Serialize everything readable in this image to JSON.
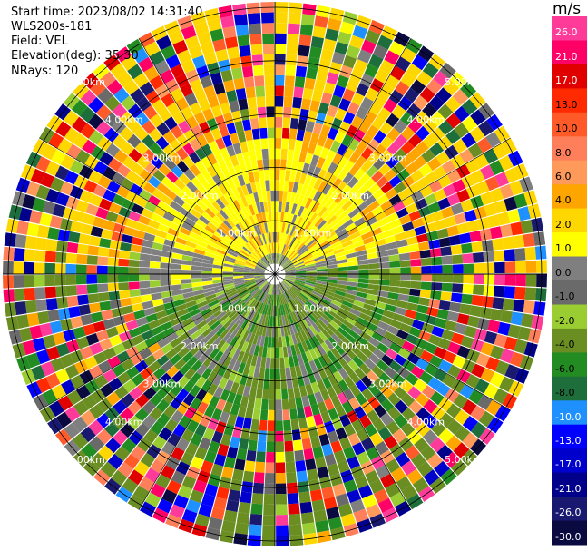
{
  "info": {
    "start_time": "Start time: 2023/08/02 14:31:40",
    "instrument": "WLS200s-181",
    "field": "Field: VEL",
    "elevation": "Elevation(deg): 35.30",
    "nrays": "NRays: 120"
  },
  "colorbar": {
    "unit": "m/s",
    "ticks": [
      "26.0",
      "21.0",
      "17.0",
      "13.0",
      "10.0",
      "8.0",
      "6.0",
      "4.0",
      "2.0",
      "1.0",
      "0.0",
      "-1.0",
      "-2.0",
      "-4.0",
      "-6.0",
      "-8.0",
      "-10.0",
      "-13.0",
      "-17.0",
      "-21.0",
      "-26.0",
      "-30.0"
    ],
    "colors": [
      "#ff3b9a",
      "#ff0066",
      "#e00000",
      "#ff2a00",
      "#ff5a28",
      "#ff7f5a",
      "#ff9a5a",
      "#ffa500",
      "#ffd700",
      "#ffff00",
      "#7f7f7f",
      "#6a6a6a",
      "#9acd32",
      "#6b8e23",
      "#228b22",
      "#1e6e3c",
      "#1e90ff",
      "#0000ff",
      "#0000cd",
      "#00008b",
      "#191970",
      "#0a0a40"
    ]
  },
  "chart_data": {
    "type": "heatmap",
    "projection": "polar plan-position indicator",
    "field": "VEL",
    "units": "m/s",
    "rays": 120,
    "range_rings": [
      "1.00km",
      "2.00km",
      "3.00km",
      "4.00km",
      "5.00km"
    ],
    "color_scale": {
      "boundaries": [
        26.0,
        21.0,
        17.0,
        13.0,
        10.0,
        8.0,
        6.0,
        4.0,
        2.0,
        1.0,
        0.0,
        -1.0,
        -2.0,
        -4.0,
        -6.0,
        -8.0,
        -10.0,
        -13.0,
        -17.0,
        -21.0,
        -26.0,
        -30.0
      ]
    },
    "pattern": {
      "near_range_north": "positive velocities 2-6 m/s (yellow/orange)",
      "near_range_south": "negative velocities -2 to -6 m/s (green)",
      "far_range": "noisy, all colors"
    }
  }
}
